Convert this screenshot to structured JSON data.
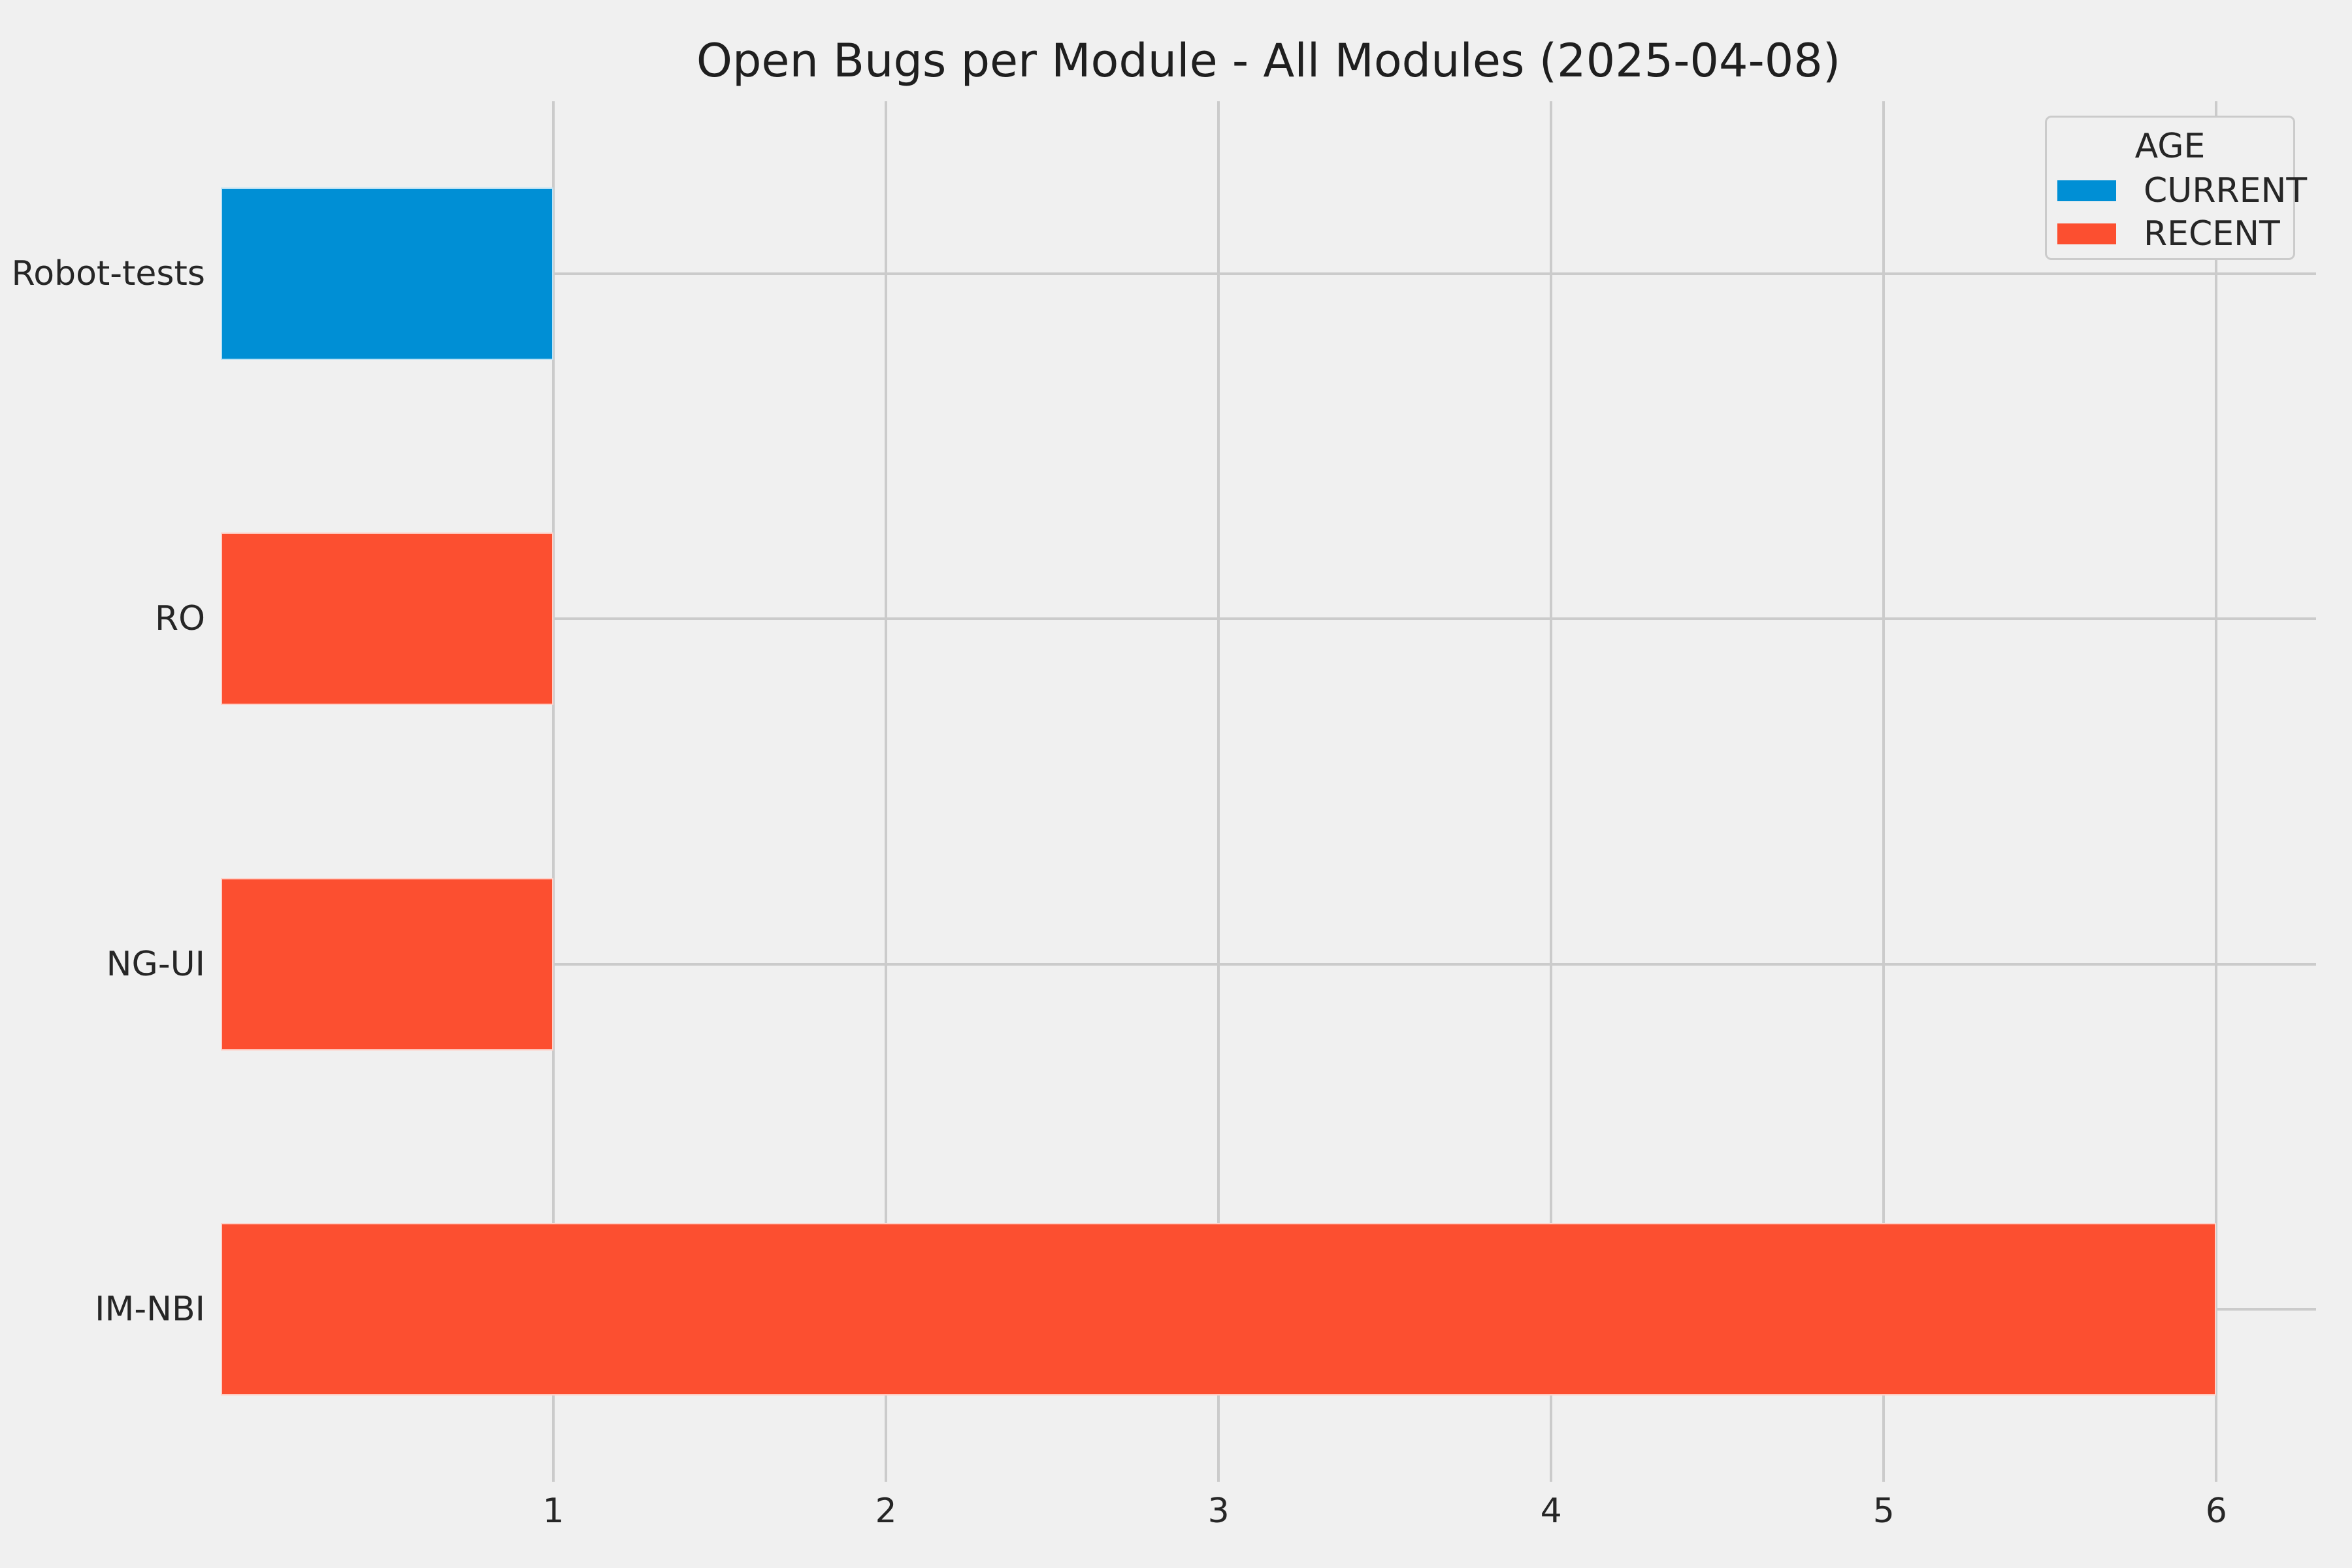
{
  "figure": {
    "background": "#f0f0f0",
    "grid_color": "#cbcbcb",
    "text_color": "#262626"
  },
  "chart_data": {
    "type": "bar",
    "orientation": "horizontal",
    "title": "Open Bugs per Module - All Modules (2025-04-08)",
    "categories": [
      "Robot-tests",
      "RO",
      "NG-UI",
      "IM-NBI"
    ],
    "bars": [
      {
        "category": "Robot-tests",
        "series": "CURRENT",
        "value": 1
      },
      {
        "category": "RO",
        "series": "RECENT",
        "value": 1
      },
      {
        "category": "NG-UI",
        "series": "RECENT",
        "value": 1
      },
      {
        "category": "IM-NBI",
        "series": "RECENT",
        "value": 6
      }
    ],
    "series": [
      {
        "name": "CURRENT",
        "color": "#008fd5",
        "values": [
          1,
          0,
          0,
          0
        ]
      },
      {
        "name": "RECENT",
        "color": "#fc4f30",
        "values": [
          0,
          1,
          1,
          6
        ]
      }
    ],
    "xticks": [
      1,
      2,
      3,
      4,
      5,
      6
    ],
    "xlim": [
      0,
      6.3
    ],
    "xlabel": "",
    "ylabel": "",
    "grid": true,
    "legend": {
      "title": "AGE",
      "position": "upper right",
      "entries": [
        "CURRENT",
        "RECENT"
      ]
    }
  }
}
